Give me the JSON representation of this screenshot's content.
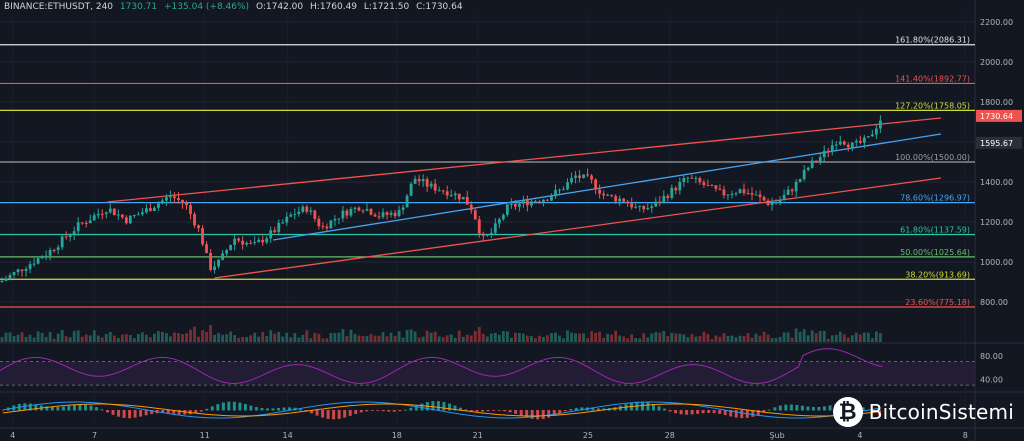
{
  "header": {
    "symbol": "BINANCE:ETHUSDT, 240",
    "last": "1730.71",
    "change": "+135.04 (+8.46%)",
    "open": "O:1742.00",
    "high": "H:1760.49",
    "low": "L:1721.50",
    "close": "C:1730.64"
  },
  "watermark": {
    "brand": "BitcoinSistemi",
    "icon": "bitcoin-logo-icon"
  },
  "chart_data": {
    "type": "candlestick",
    "y_axis": {
      "range": [
        720,
        2240
      ],
      "ticks": [
        "2200.00",
        "2000.00",
        "1800.00",
        "1600.00",
        "1400.00",
        "1200.00",
        "1000.00",
        "800.00"
      ]
    },
    "x_axis": {
      "ticks": [
        "4",
        "7",
        "11",
        "14",
        "18",
        "21",
        "25",
        "28",
        "Şub",
        "4",
        "8"
      ]
    },
    "price_labels": [
      {
        "value": 1730.64,
        "label": "1730.64",
        "color": "#ef5350"
      },
      {
        "value": 1595.67,
        "label": "1595.67",
        "color": "#d1d4dc"
      }
    ],
    "fib_levels": [
      {
        "value": 2086.31,
        "label": "161.80%(2086.31)",
        "color": "#e0e3eb"
      },
      {
        "value": 1892.77,
        "label": "141.40%(1892.77)",
        "color": "#ef5350"
      },
      {
        "value": 1758.05,
        "label": "127.20%(1758.05)",
        "color": "#cddc39"
      },
      {
        "value": 1500.0,
        "label": "100.00%(1500.00)",
        "color": "#9e9e9e"
      },
      {
        "value": 1296.97,
        "label": "78.60%(1296.97)",
        "color": "#42a5f5"
      },
      {
        "value": 1137.59,
        "label": "61.80%(1137.59)",
        "color": "#26c6aa"
      },
      {
        "value": 1025.64,
        "label": "50.00%(1025.64)",
        "color": "#66bb6a"
      },
      {
        "value": 913.69,
        "label": "38.20%(913.69)",
        "color": "#cddc39"
      },
      {
        "value": 775.18,
        "label": "23.60%(775.18)",
        "color": "#ef5350"
      }
    ],
    "channel_lines": [
      {
        "color": "#ef5350",
        "points": [
          [
            0.11,
            1300
          ],
          [
            0.965,
            1720
          ]
        ]
      },
      {
        "color": "#ef5350",
        "points": [
          [
            0.22,
            920
          ],
          [
            0.965,
            1420
          ]
        ]
      },
      {
        "color": "#42a5f5",
        "points": [
          [
            0.28,
            1110
          ],
          [
            0.965,
            1640
          ]
        ]
      }
    ],
    "price_path": [
      [
        0.0,
        900
      ],
      [
        0.02,
        960
      ],
      [
        0.05,
        1050
      ],
      [
        0.08,
        1180
      ],
      [
        0.11,
        1270
      ],
      [
        0.13,
        1210
      ],
      [
        0.15,
        1260
      ],
      [
        0.175,
        1330
      ],
      [
        0.19,
        1290
      ],
      [
        0.205,
        1150
      ],
      [
        0.215,
        970
      ],
      [
        0.225,
        1000
      ],
      [
        0.24,
        1120
      ],
      [
        0.26,
        1080
      ],
      [
        0.28,
        1150
      ],
      [
        0.3,
        1240
      ],
      [
        0.315,
        1270
      ],
      [
        0.33,
        1170
      ],
      [
        0.35,
        1240
      ],
      [
        0.37,
        1280
      ],
      [
        0.39,
        1230
      ],
      [
        0.41,
        1250
      ],
      [
        0.425,
        1420
      ],
      [
        0.44,
        1380
      ],
      [
        0.46,
        1350
      ],
      [
        0.475,
        1320
      ],
      [
        0.485,
        1260
      ],
      [
        0.495,
        1110
      ],
      [
        0.505,
        1150
      ],
      [
        0.52,
        1270
      ],
      [
        0.54,
        1300
      ],
      [
        0.56,
        1320
      ],
      [
        0.575,
        1360
      ],
      [
        0.59,
        1430
      ],
      [
        0.605,
        1410
      ],
      [
        0.62,
        1330
      ],
      [
        0.64,
        1310
      ],
      [
        0.655,
        1260
      ],
      [
        0.67,
        1280
      ],
      [
        0.69,
        1360
      ],
      [
        0.705,
        1420
      ],
      [
        0.72,
        1390
      ],
      [
        0.74,
        1340
      ],
      [
        0.76,
        1360
      ],
      [
        0.775,
        1330
      ],
      [
        0.79,
        1290
      ],
      [
        0.8,
        1310
      ],
      [
        0.815,
        1380
      ],
      [
        0.83,
        1480
      ],
      [
        0.845,
        1540
      ],
      [
        0.86,
        1620
      ],
      [
        0.875,
        1580
      ],
      [
        0.89,
        1610
      ],
      [
        0.905,
        1730
      ]
    ],
    "rsi": {
      "ticks": [
        "80.00",
        "40.00"
      ],
      "range": [
        20,
        100
      ]
    },
    "grid": true
  }
}
